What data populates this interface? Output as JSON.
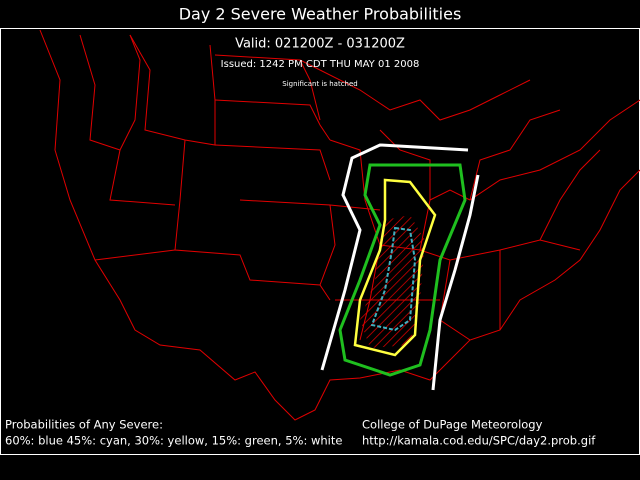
{
  "header": {
    "title": "Day 2 Severe Weather Probabilities",
    "valid": "Valid: 021200Z - 031200Z",
    "issued": "Issued: 1242 PM CDT THU MAY 01 2008",
    "note": "Significant is hatched"
  },
  "legend": {
    "heading": "Probabilities of Any Severe:",
    "text": "60%: blue 45%: cyan, 30%: yellow, 15%: green, 5%: white"
  },
  "credit": {
    "name": "College of DuPage Meteorology",
    "url": "http://kamala.cod.edu/SPC/day2.prob.gif"
  }
}
